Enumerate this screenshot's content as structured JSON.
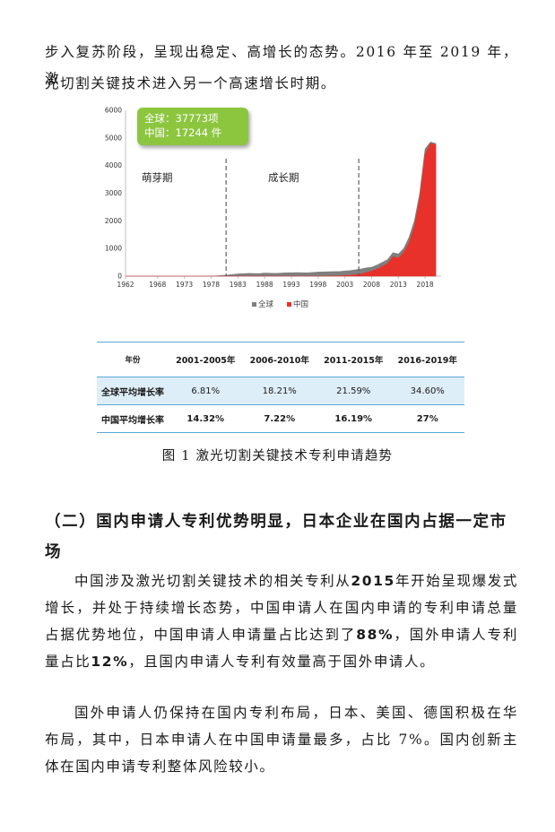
{
  "intro": {
    "line1": "步入复苏阶段，呈现出稳定、高增长的态势。2016 年至 2019 年，激",
    "line2": "光切割关键技术进入另一个高速增长时期。"
  },
  "chart": {
    "tooltip": {
      "global": "全球：37773项",
      "china": "中国：17244 件"
    },
    "stage_labels": {
      "sprout": "萌芽期",
      "growth": "成长期"
    },
    "legend": {
      "global": "全球",
      "china": "中国"
    },
    "colors": {
      "global": "#7f7f7f",
      "china": "#e8312a",
      "tooltip": "#8cc63f"
    }
  },
  "chart_data": {
    "type": "area",
    "x_ticks": [
      "1962",
      "1968",
      "1973",
      "1978",
      "1983",
      "1988",
      "1993",
      "1998",
      "2003",
      "2008",
      "2013",
      "2018"
    ],
    "ylim": [
      0,
      6000
    ],
    "y_ticks": [
      "0",
      "1000",
      "2000",
      "3000",
      "4000",
      "5000",
      "6000"
    ],
    "x": [
      1962,
      1975,
      1979,
      1981,
      1983,
      1985,
      1987,
      1988,
      1990,
      1992,
      1994,
      1996,
      1998,
      2000,
      2002,
      2004,
      2006,
      2007,
      2008,
      2009,
      2010,
      2011,
      2012,
      2013,
      2014,
      2015,
      2016,
      2017,
      2018,
      2019,
      2020
    ],
    "series": [
      {
        "name": "全球",
        "values": [
          0,
          0,
          10,
          40,
          80,
          100,
          90,
          110,
          100,
          120,
          130,
          120,
          150,
          160,
          170,
          200,
          260,
          300,
          320,
          400,
          500,
          600,
          850,
          800,
          1000,
          1400,
          2000,
          3000,
          4600,
          4850,
          4800
        ]
      },
      {
        "name": "中国",
        "values": [
          0,
          0,
          0,
          0,
          0,
          0,
          0,
          0,
          0,
          0,
          0,
          0,
          0,
          0,
          10,
          30,
          80,
          130,
          180,
          250,
          350,
          450,
          700,
          650,
          850,
          1200,
          1800,
          2800,
          4400,
          4800,
          4750
        ]
      }
    ],
    "annotations": [
      "萌芽期",
      "成长期"
    ],
    "legend_position": "bottom"
  },
  "table": {
    "headers": [
      "年份",
      "2001-2005年",
      "2006-2010年",
      "2011-2015年",
      "2016-2019年"
    ],
    "rows": [
      {
        "label": "全球平均增长率",
        "values": [
          "6.81%",
          "18.21%",
          "21.59%",
          "34.60%"
        ]
      },
      {
        "label": "中国平均增长率",
        "values": [
          "14.32%",
          "7.22%",
          "16.19%",
          "27%"
        ]
      }
    ]
  },
  "caption": "图 1  激光切割关键技术专利申请趋势",
  "heading": "（二）国内申请人专利优势明显，日本企业在国内占据一定市场",
  "para2": {
    "t1": "中国涉及激光切割关键技术的相关专利从",
    "b1": "2015",
    "t2": "年开始呈现爆发式增长，并处于持续增长态势，中国申请人在国内申请的专利申请总量占据优势地位，中国申请人申请量占比达到了",
    "b2": "88%",
    "t3": "，国外申请人专利量占比",
    "b3": "12%",
    "t4": "，且国内申请人专利有效量高于国外申请人。"
  },
  "para3": "国外申请人仍保持在国内专利布局，日本、美国、德国积极在华布局，其中，日本申请人在中国申请量最多，占比 7%。国内创新主体在国内申请专利整体风险较小。"
}
